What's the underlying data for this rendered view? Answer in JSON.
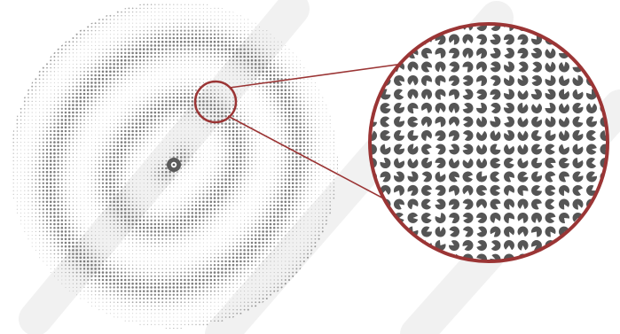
{
  "figure": {
    "disc": {
      "dot_color": "#6e6e6e",
      "background": "#ffffff",
      "center_marker_color": "#5a5a5a"
    },
    "magnifier": {
      "ring_color": "#9b3535",
      "connector_color": "#9b3535",
      "glyph_color": "#555555"
    },
    "watermark": {
      "color": "#d9d9d9"
    }
  }
}
